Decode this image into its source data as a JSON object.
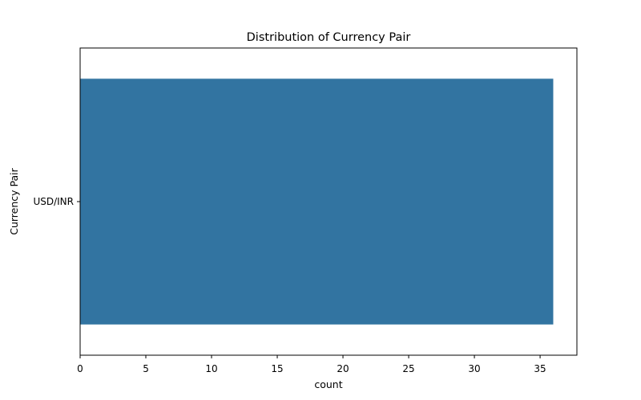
{
  "chart_data": {
    "type": "bar",
    "orientation": "horizontal",
    "title": "Distribution of Currency Pair",
    "xlabel": "count",
    "ylabel": "Currency Pair",
    "categories": [
      "USD/INR"
    ],
    "values": [
      36
    ],
    "xlim": [
      0,
      37.8
    ],
    "xticks": [
      0,
      5,
      10,
      15,
      20,
      25,
      30,
      35
    ],
    "grid": false,
    "bar_color": "#3274a1"
  }
}
